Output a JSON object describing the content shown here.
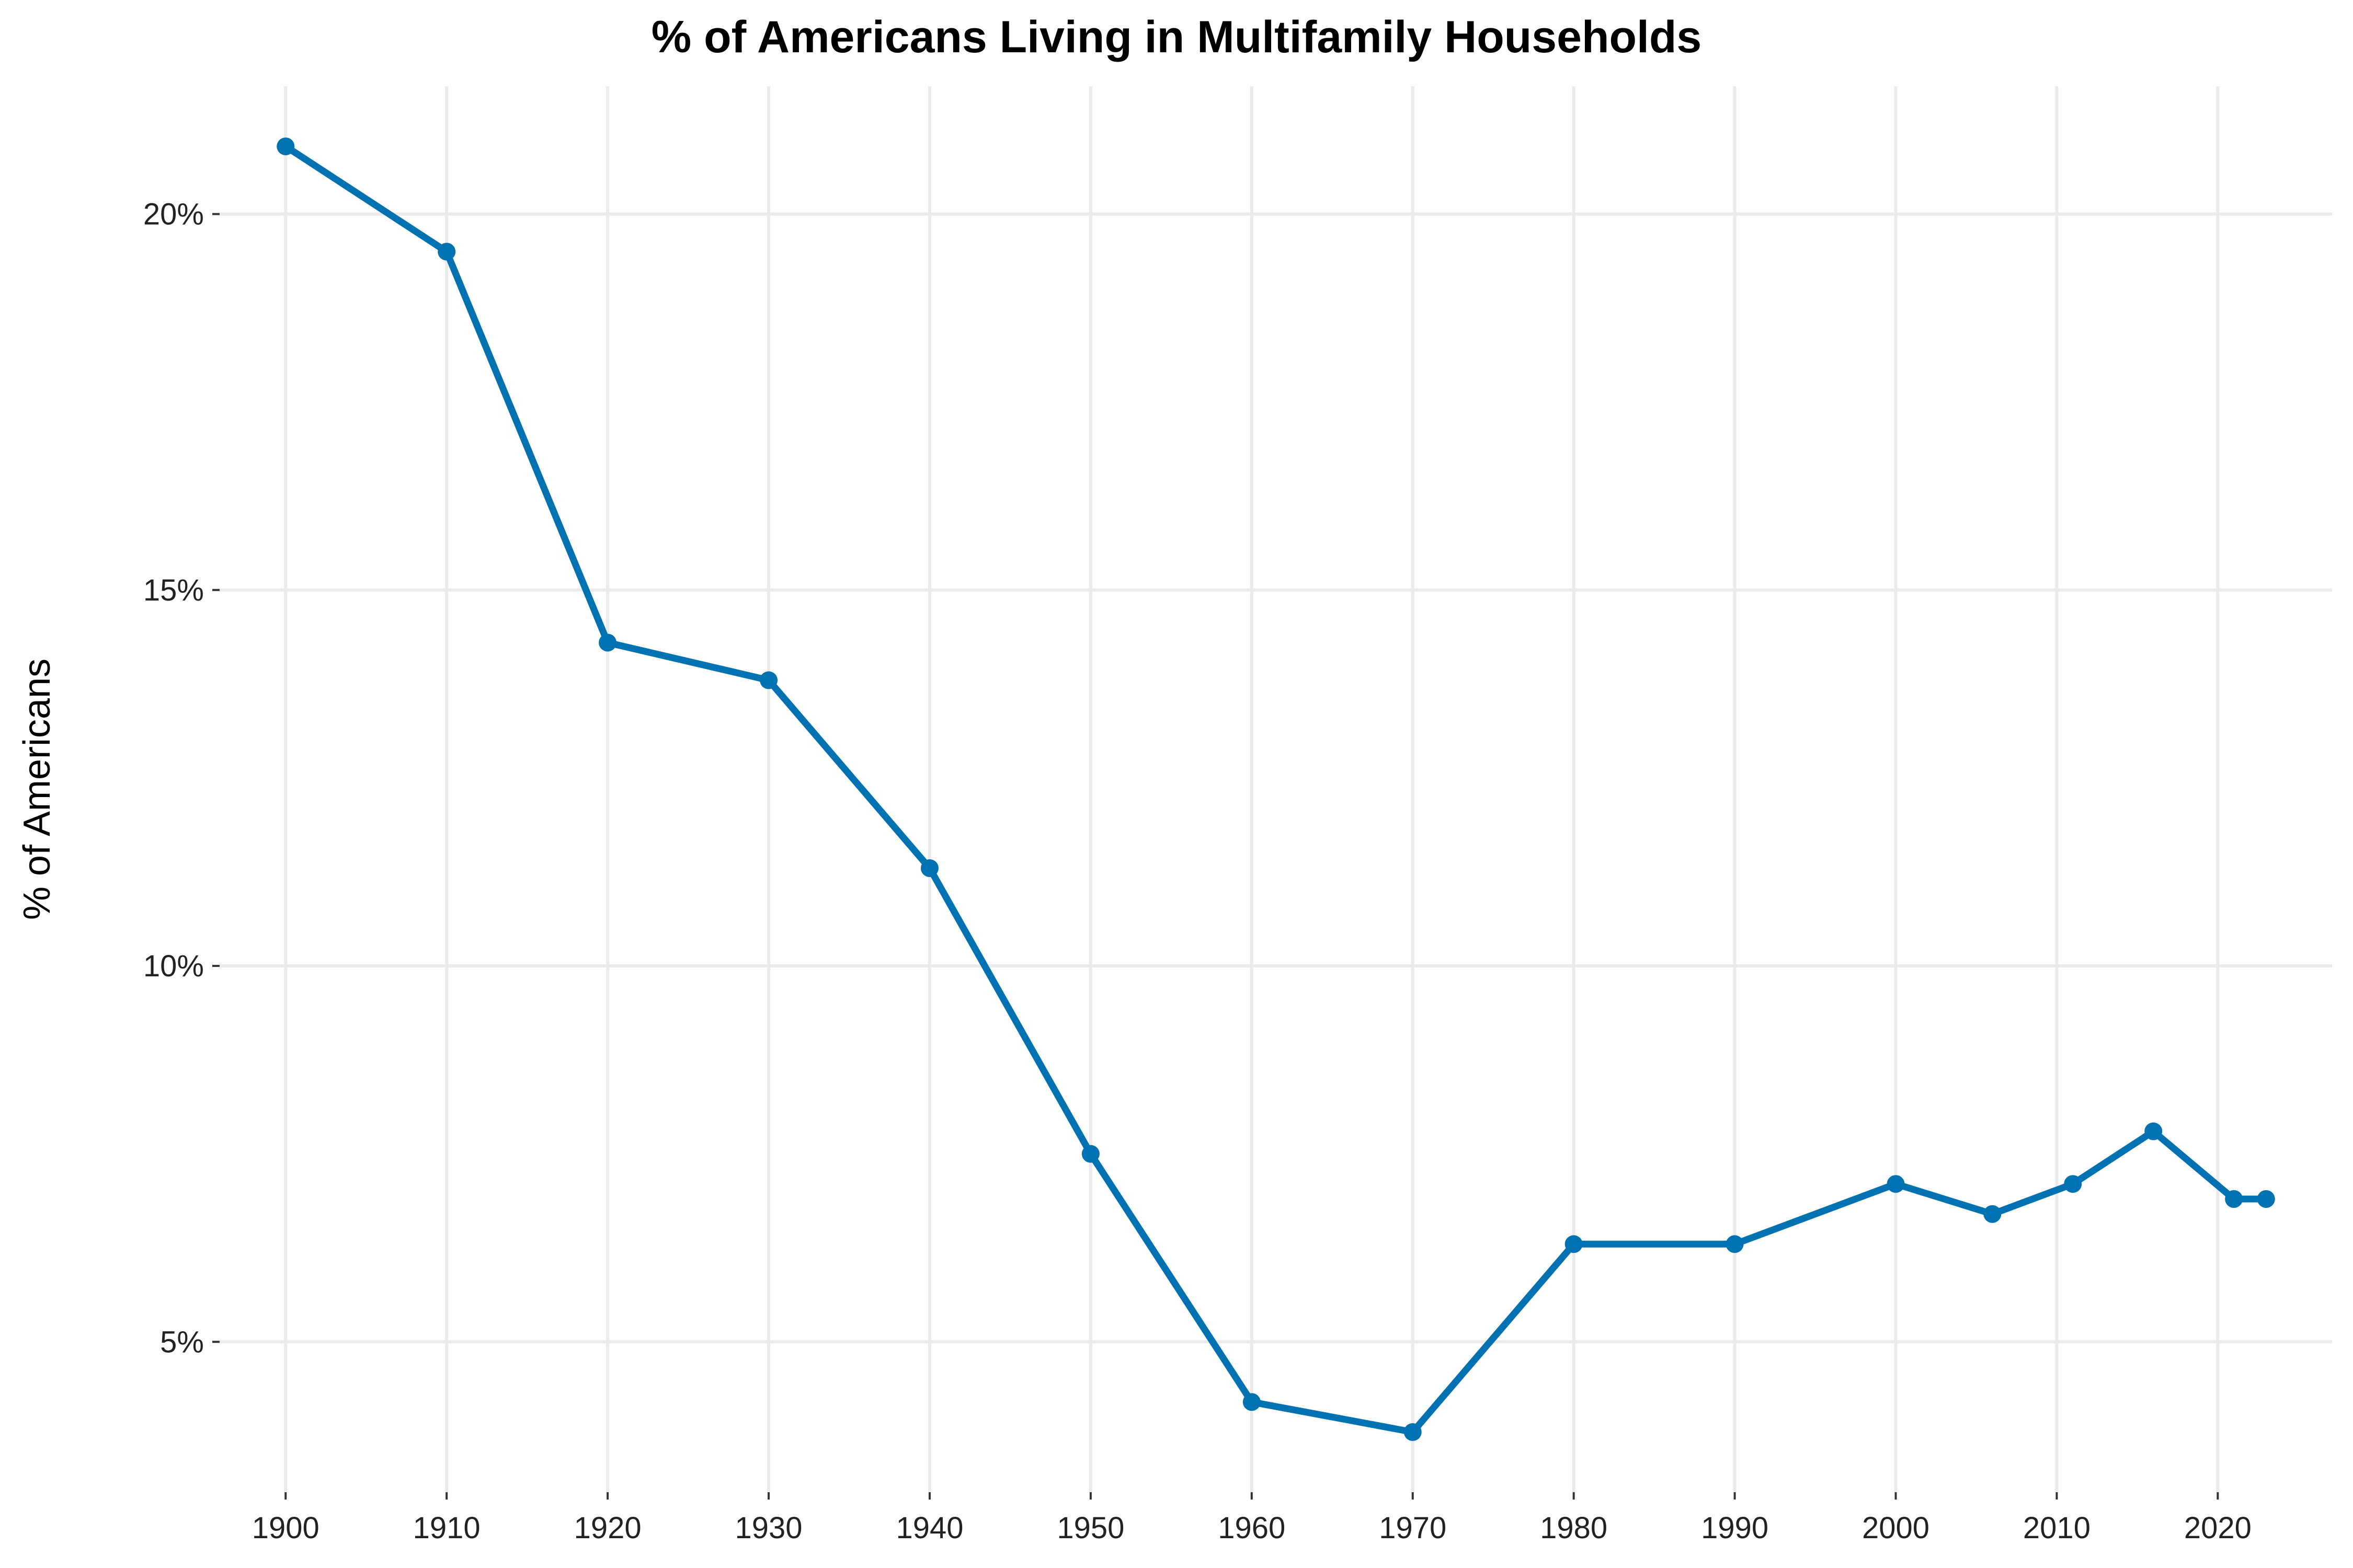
{
  "chart_data": {
    "type": "line",
    "title": "% of Americans Living in Multifamily Households",
    "xlabel": "",
    "ylabel": "% of Americans",
    "x": [
      1900,
      1910,
      1920,
      1930,
      1940,
      1950,
      1960,
      1970,
      1980,
      1990,
      2000,
      2006,
      2011,
      2016,
      2021,
      2023
    ],
    "series": [
      {
        "values": [
          20.9,
          19.5,
          14.3,
          13.8,
          11.3,
          7.5,
          4.2,
          3.8,
          6.3,
          6.3,
          7.1,
          6.7,
          7.1,
          7.8,
          6.9,
          6.9
        ]
      }
    ],
    "xticks": [
      1900,
      1910,
      1920,
      1930,
      1940,
      1950,
      1960,
      1970,
      1980,
      1990,
      2000,
      2010,
      2020
    ],
    "xtick_labels": [
      "1900",
      "1910",
      "1920",
      "1930",
      "1940",
      "1950",
      "1960",
      "1970",
      "1980",
      "1990",
      "2000",
      "2010",
      "2020"
    ],
    "yticks": [
      5,
      10,
      15,
      20
    ],
    "ytick_labels": [
      "5%",
      "10%",
      "15%",
      "20%"
    ],
    "xlim": [
      1895.9,
      2027.1
    ],
    "ylim": [
      3.0,
      21.7
    ],
    "grid": true,
    "legend": "none",
    "line_color": "#0072B2"
  }
}
